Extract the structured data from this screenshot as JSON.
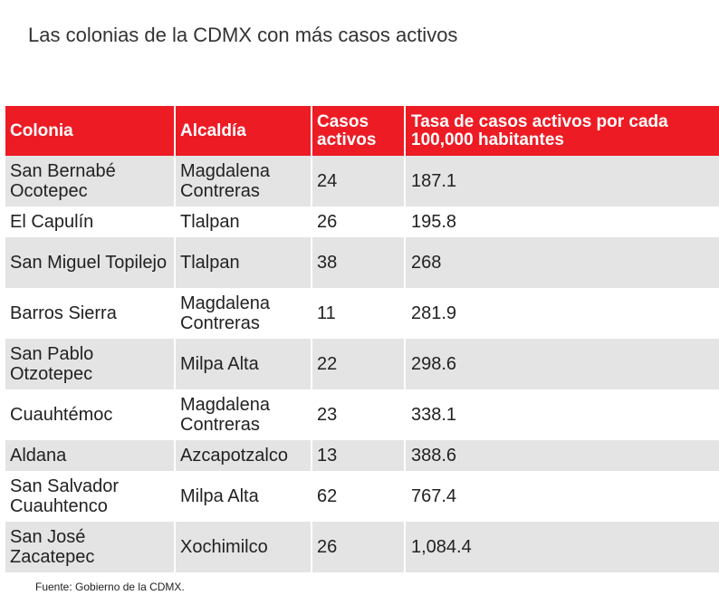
{
  "title": "Las colonias de la CDMX con más casos activos",
  "headers": {
    "colonia": "Colonia",
    "alcaldia": "Alcaldía",
    "casos": "Casos activos",
    "tasa": "Tasa de casos activos por cada 100,000 habitantes"
  },
  "rows": [
    {
      "colonia": "San Bernabé Ocotepec",
      "alcaldia": "Magdalena Contreras",
      "casos": "24",
      "tasa": "187.1"
    },
    {
      "colonia": "El Capulín",
      "alcaldia": "Tlalpan",
      "casos": "26",
      "tasa": "195.8"
    },
    {
      "colonia": "San Miguel Topilejo",
      "alcaldia": "Tlalpan",
      "casos": "38",
      "tasa": "268"
    },
    {
      "colonia": "Barros Sierra",
      "alcaldia": "Magdalena Contreras",
      "casos": "11",
      "tasa": "281.9"
    },
    {
      "colonia": "San Pablo Otzotepec",
      "alcaldia": "Milpa Alta",
      "casos": "22",
      "tasa": "298.6"
    },
    {
      "colonia": "Cuauhtémoc",
      "alcaldia": "Magdalena Contreras",
      "casos": "23",
      "tasa": "338.1"
    },
    {
      "colonia": "Aldana",
      "alcaldia": "Azcapotzalco",
      "casos": "13",
      "tasa": "388.6"
    },
    {
      "colonia": "San Salvador Cuauhtenco",
      "alcaldia": "Milpa Alta",
      "casos": "62",
      "tasa": "767.4"
    },
    {
      "colonia": "San José Zacatepec",
      "alcaldia": "Xochimilco",
      "casos": "26",
      "tasa": "1,084.4"
    }
  ],
  "source": "Fuente: Gobierno de la CDMX.",
  "colors": {
    "header_bg": "#ed1b24",
    "stripe": "#e4e4e4"
  }
}
